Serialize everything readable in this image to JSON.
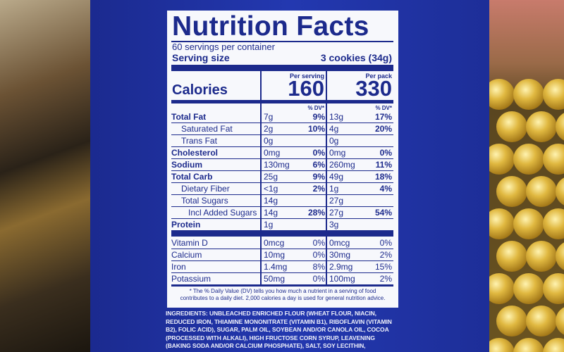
{
  "label": {
    "title": "Nutrition Facts",
    "servings": "60 servings per container",
    "serving_size_label": "Serving size",
    "serving_size_value": "3 cookies (34g)",
    "columns": [
      "Per serving",
      "Per pack"
    ],
    "calories_label": "Calories",
    "calories": [
      "160",
      "330"
    ],
    "dv_headers": [
      "% DV*",
      "% DV*"
    ],
    "rows": [
      {
        "name": "Total Fat",
        "serving_amount": "7g",
        "serving_dv": "9%",
        "pack_amount": "13g",
        "pack_dv": "17%"
      },
      {
        "name": "Saturated Fat",
        "serving_amount": "2g",
        "serving_dv": "10%",
        "pack_amount": "4g",
        "pack_dv": "20%"
      },
      {
        "name": "Trans Fat",
        "serving_amount": "0g",
        "pack_amount": "0g"
      },
      {
        "name": "Cholesterol",
        "serving_amount": "0mg",
        "serving_dv": "0%",
        "pack_amount": "0mg",
        "pack_dv": "0%"
      },
      {
        "name": "Sodium",
        "serving_amount": "130mg",
        "serving_dv": "6%",
        "pack_amount": "260mg",
        "pack_dv": "11%"
      },
      {
        "name": "Total Carb",
        "serving_amount": "25g",
        "serving_dv": "9%",
        "pack_amount": "49g",
        "pack_dv": "18%"
      },
      {
        "name": "Dietary Fiber",
        "serving_amount": "<1g",
        "serving_dv": "2%",
        "pack_amount": "1g",
        "pack_dv": "4%"
      },
      {
        "name": "Total Sugars",
        "serving_amount": "14g",
        "pack_amount": "27g"
      },
      {
        "name": "Incl Added Sugars",
        "serving_amount": "14g",
        "serving_dv": "28%",
        "pack_amount": "27g",
        "pack_dv": "54%"
      },
      {
        "name": "Protein",
        "serving_amount": "1g",
        "pack_amount": "3g"
      }
    ],
    "vitamins": [
      {
        "name": "Vitamin D",
        "serving_amount": "0mcg",
        "serving_dv": "0%",
        "pack_amount": "0mcg",
        "pack_dv": "0%"
      },
      {
        "name": "Calcium",
        "serving_amount": "10mg",
        "serving_dv": "0%",
        "pack_amount": "30mg",
        "pack_dv": "2%"
      },
      {
        "name": "Iron",
        "serving_amount": "1.4mg",
        "serving_dv": "8%",
        "pack_amount": "2.9mg",
        "pack_dv": "15%"
      },
      {
        "name": "Potassium",
        "serving_amount": "50mg",
        "serving_dv": "0%",
        "pack_amount": "100mg",
        "pack_dv": "2%"
      }
    ],
    "footnote": "* The % Daily Value (DV) tells you how much a nutrient in a serving of food contributes to a daily diet. 2,000 calories a day is used for general nutrition advice."
  },
  "ingredients": "INGREDIENTS: UNBLEACHED ENRICHED FLOUR (WHEAT FLOUR, NIACIN, REDUCED IRON, THIAMINE MONONITRATE (VITAMIN B1), RIBOFLAVIN (VITAMIN B2), FOLIC ACID), SUGAR, PALM OIL, SOYBEAN AND/OR CANOLA OIL, COCOA (PROCESSED WITH ALKALI), HIGH FRUCTOSE CORN SYRUP, LEAVENING (BAKING SODA AND/OR CALCIUM PHOSPHATE), SALT, SOY LECITHIN, CHOCOLATE, ARTIFICIAL FLAVOR."
}
